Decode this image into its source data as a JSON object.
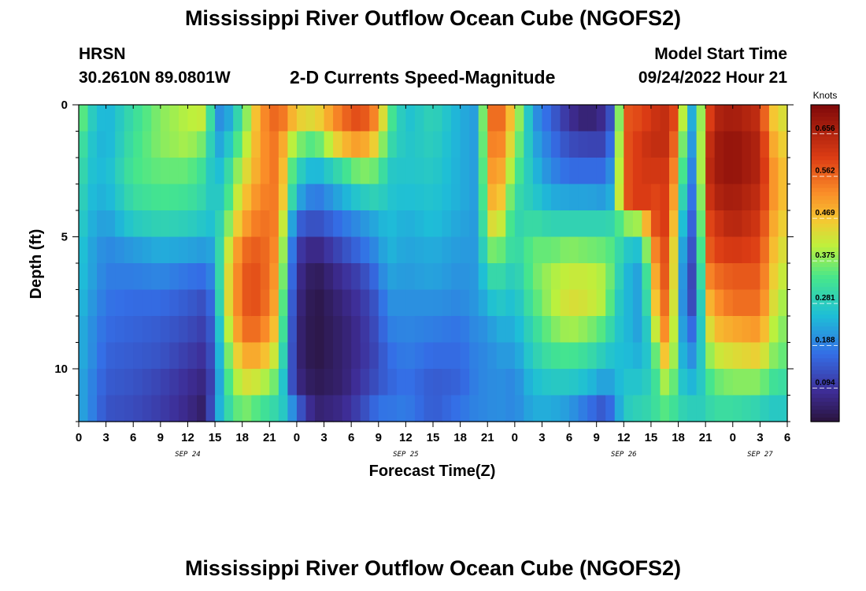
{
  "header": {
    "title": "Mississippi River Outflow Ocean Cube (NGOFS2)",
    "station": "HRSN",
    "coords": "30.2610N  89.0801W",
    "subtitle": "2-D Currents Speed-Magnitude",
    "model_label": "Model Start Time",
    "model_time": "09/24/2022 Hour 21"
  },
  "footer": {
    "title": "Mississippi River Outflow Ocean Cube (NGOFS2)"
  },
  "chart_data": {
    "type": "heatmap",
    "title": "2-D Currents Speed-Magnitude",
    "xlabel": "Forecast Time(Z)",
    "ylabel": "Depth (ft)",
    "x_range_hours": [
      0,
      78
    ],
    "y_range_ft": [
      0,
      12
    ],
    "x_tick_values": [
      0,
      3,
      6,
      9,
      12,
      15,
      18,
      21,
      24,
      27,
      30,
      33,
      36,
      39,
      42,
      45,
      48,
      51,
      54,
      57,
      60,
      63,
      66,
      69,
      72,
      75,
      78
    ],
    "x_tick_labels": [
      "0",
      "3",
      "6",
      "9",
      "12",
      "15",
      "18",
      "21",
      "0",
      "3",
      "6",
      "9",
      "12",
      "15",
      "18",
      "21",
      "0",
      "3",
      "6",
      "9",
      "12",
      "15",
      "18",
      "21",
      "0",
      "3",
      "6"
    ],
    "y_ticks": [
      0,
      5,
      10
    ],
    "y_tick_labels": [
      "0",
      "5",
      "10"
    ],
    "date_labels": [
      {
        "label": "SEP 24",
        "hour": 12
      },
      {
        "label": "SEP 25",
        "hour": 36
      },
      {
        "label": "SEP 26",
        "hour": 60
      },
      {
        "label": "SEP 27",
        "hour": 75
      }
    ],
    "colorbar": {
      "unit": "Knots",
      "min": 0.02,
      "max": 0.72,
      "ticks": [
        0.094,
        0.188,
        0.281,
        0.375,
        0.469,
        0.562,
        0.656
      ],
      "tick_labels": [
        "0.094",
        "0.188",
        "0.281",
        "0.375",
        "0.469",
        "0.562",
        "0.656"
      ]
    },
    "depth_levels_ft": [
      0.5,
      1.5,
      2.5,
      3.5,
      4.5,
      5.5,
      6.5,
      7.5,
      8.5,
      9.5,
      10.5,
      11.5
    ],
    "time_step_hours": 1,
    "speed_profiles_by_hour": [
      [
        0,
        [
          0.4,
          0.36,
          0.34,
          0.32,
          0.3,
          0.28,
          0.27,
          0.26,
          0.25,
          0.25,
          0.24,
          0.24
        ]
      ],
      [
        1,
        [
          0.3,
          0.28,
          0.27,
          0.26,
          0.25,
          0.24,
          0.24,
          0.23,
          0.22,
          0.22,
          0.21,
          0.21
        ]
      ],
      [
        3,
        [
          0.24,
          0.24,
          0.25,
          0.24,
          0.22,
          0.2,
          0.19,
          0.18,
          0.17,
          0.16,
          0.15,
          0.14
        ]
      ],
      [
        6,
        [
          0.32,
          0.33,
          0.34,
          0.32,
          0.28,
          0.22,
          0.19,
          0.17,
          0.16,
          0.15,
          0.14,
          0.13
        ]
      ],
      [
        9,
        [
          0.38,
          0.38,
          0.36,
          0.34,
          0.3,
          0.24,
          0.2,
          0.17,
          0.15,
          0.14,
          0.12,
          0.11
        ]
      ],
      [
        12,
        [
          0.41,
          0.4,
          0.36,
          0.33,
          0.29,
          0.23,
          0.18,
          0.15,
          0.13,
          0.11,
          0.09,
          0.08
        ]
      ],
      [
        14,
        [
          0.42,
          0.36,
          0.32,
          0.3,
          0.27,
          0.22,
          0.17,
          0.13,
          0.11,
          0.09,
          0.07,
          0.05
        ]
      ],
      [
        15,
        [
          0.22,
          0.23,
          0.24,
          0.26,
          0.26,
          0.24,
          0.22,
          0.2,
          0.18,
          0.17,
          0.16,
          0.2
        ]
      ],
      [
        16,
        [
          0.2,
          0.24,
          0.28,
          0.3,
          0.34,
          0.38,
          0.4,
          0.4,
          0.36,
          0.33,
          0.31,
          0.29
        ]
      ],
      [
        18,
        [
          0.34,
          0.38,
          0.42,
          0.46,
          0.5,
          0.56,
          0.58,
          0.58,
          0.56,
          0.5,
          0.44,
          0.38
        ]
      ],
      [
        20,
        [
          0.52,
          0.52,
          0.52,
          0.54,
          0.56,
          0.58,
          0.59,
          0.59,
          0.56,
          0.5,
          0.42,
          0.34
        ]
      ],
      [
        22,
        [
          0.58,
          0.56,
          0.56,
          0.55,
          0.54,
          0.52,
          0.5,
          0.48,
          0.45,
          0.4,
          0.35,
          0.3
        ]
      ],
      [
        23,
        [
          0.52,
          0.44,
          0.4,
          0.38,
          0.3,
          0.26,
          0.24,
          0.22,
          0.21,
          0.2,
          0.19,
          0.26
        ]
      ],
      [
        24,
        [
          0.46,
          0.38,
          0.3,
          0.24,
          0.16,
          0.11,
          0.09,
          0.08,
          0.07,
          0.07,
          0.08,
          0.16
        ]
      ],
      [
        26,
        [
          0.44,
          0.34,
          0.24,
          0.18,
          0.13,
          0.07,
          0.04,
          0.03,
          0.03,
          0.03,
          0.04,
          0.06
        ]
      ],
      [
        29,
        [
          0.56,
          0.48,
          0.32,
          0.24,
          0.18,
          0.13,
          0.09,
          0.07,
          0.06,
          0.06,
          0.06,
          0.08
        ]
      ],
      [
        31,
        [
          0.6,
          0.52,
          0.38,
          0.28,
          0.21,
          0.17,
          0.12,
          0.1,
          0.09,
          0.09,
          0.1,
          0.12
        ]
      ],
      [
        33,
        [
          0.52,
          0.44,
          0.36,
          0.3,
          0.24,
          0.21,
          0.18,
          0.15,
          0.14,
          0.13,
          0.14,
          0.18
        ]
      ],
      [
        34,
        [
          0.36,
          0.32,
          0.28,
          0.27,
          0.26,
          0.25,
          0.23,
          0.21,
          0.19,
          0.17,
          0.16,
          0.18
        ]
      ],
      [
        36,
        [
          0.26,
          0.27,
          0.27,
          0.26,
          0.24,
          0.23,
          0.22,
          0.21,
          0.2,
          0.19,
          0.18,
          0.19
        ]
      ],
      [
        39,
        [
          0.3,
          0.29,
          0.28,
          0.27,
          0.26,
          0.24,
          0.23,
          0.21,
          0.19,
          0.17,
          0.15,
          0.15
        ]
      ],
      [
        42,
        [
          0.24,
          0.24,
          0.24,
          0.24,
          0.23,
          0.22,
          0.21,
          0.2,
          0.18,
          0.17,
          0.16,
          0.18
        ]
      ],
      [
        44,
        [
          0.22,
          0.22,
          0.22,
          0.22,
          0.22,
          0.22,
          0.22,
          0.22,
          0.21,
          0.2,
          0.2,
          0.2
        ]
      ],
      [
        45,
        [
          0.52,
          0.5,
          0.48,
          0.46,
          0.42,
          0.36,
          0.3,
          0.25,
          0.21,
          0.2,
          0.2,
          0.2
        ]
      ],
      [
        46,
        [
          0.6,
          0.58,
          0.55,
          0.52,
          0.46,
          0.38,
          0.32,
          0.28,
          0.24,
          0.22,
          0.21,
          0.21
        ]
      ],
      [
        48,
        [
          0.44,
          0.4,
          0.36,
          0.32,
          0.3,
          0.3,
          0.28,
          0.26,
          0.24,
          0.22,
          0.2,
          0.2
        ]
      ],
      [
        50,
        [
          0.22,
          0.24,
          0.26,
          0.28,
          0.32,
          0.36,
          0.36,
          0.34,
          0.31,
          0.29,
          0.26,
          0.24
        ]
      ],
      [
        52,
        [
          0.16,
          0.18,
          0.2,
          0.24,
          0.3,
          0.36,
          0.4,
          0.4,
          0.37,
          0.33,
          0.28,
          0.24
        ]
      ],
      [
        54,
        [
          0.09,
          0.13,
          0.17,
          0.23,
          0.3,
          0.38,
          0.42,
          0.44,
          0.4,
          0.34,
          0.28,
          0.22
        ]
      ],
      [
        56,
        [
          0.06,
          0.12,
          0.17,
          0.23,
          0.3,
          0.37,
          0.42,
          0.43,
          0.38,
          0.32,
          0.26,
          0.18
        ]
      ],
      [
        58,
        [
          0.09,
          0.12,
          0.17,
          0.22,
          0.3,
          0.36,
          0.4,
          0.4,
          0.34,
          0.28,
          0.22,
          0.14
        ]
      ],
      [
        59,
        [
          0.18,
          0.22,
          0.24,
          0.26,
          0.31,
          0.34,
          0.33,
          0.3,
          0.28,
          0.26,
          0.24,
          0.2
        ]
      ],
      [
        60,
        [
          0.58,
          0.58,
          0.58,
          0.58,
          0.38,
          0.28,
          0.26,
          0.26,
          0.26,
          0.26,
          0.27,
          0.28
        ]
      ],
      [
        62,
        [
          0.6,
          0.62,
          0.62,
          0.62,
          0.4,
          0.26,
          0.22,
          0.22,
          0.22,
          0.24,
          0.27,
          0.3
        ]
      ],
      [
        63,
        [
          0.62,
          0.64,
          0.62,
          0.6,
          0.58,
          0.5,
          0.44,
          0.4,
          0.34,
          0.3,
          0.3,
          0.31
        ]
      ],
      [
        64,
        [
          0.64,
          0.64,
          0.62,
          0.6,
          0.6,
          0.58,
          0.56,
          0.54,
          0.5,
          0.42,
          0.36,
          0.34
        ]
      ],
      [
        65,
        [
          0.64,
          0.64,
          0.62,
          0.62,
          0.62,
          0.6,
          0.6,
          0.58,
          0.56,
          0.52,
          0.44,
          0.36
        ]
      ],
      [
        66,
        [
          0.56,
          0.5,
          0.46,
          0.4,
          0.34,
          0.3,
          0.29,
          0.28,
          0.27,
          0.27,
          0.28,
          0.3
        ]
      ],
      [
        67,
        [
          0.26,
          0.24,
          0.22,
          0.2,
          0.18,
          0.16,
          0.14,
          0.14,
          0.18,
          0.22,
          0.26,
          0.3
        ]
      ],
      [
        68,
        [
          0.22,
          0.2,
          0.18,
          0.16,
          0.14,
          0.12,
          0.11,
          0.12,
          0.16,
          0.2,
          0.24,
          0.28
        ]
      ],
      [
        69,
        [
          0.56,
          0.6,
          0.62,
          0.6,
          0.58,
          0.56,
          0.52,
          0.46,
          0.4,
          0.36,
          0.32,
          0.3
        ]
      ],
      [
        70,
        [
          0.66,
          0.68,
          0.68,
          0.66,
          0.62,
          0.6,
          0.56,
          0.52,
          0.48,
          0.42,
          0.36,
          0.32
        ]
      ],
      [
        72,
        [
          0.68,
          0.7,
          0.7,
          0.68,
          0.66,
          0.62,
          0.58,
          0.56,
          0.5,
          0.44,
          0.38,
          0.32
        ]
      ],
      [
        75,
        [
          0.64,
          0.66,
          0.66,
          0.64,
          0.62,
          0.6,
          0.58,
          0.56,
          0.52,
          0.46,
          0.38,
          0.3
        ]
      ],
      [
        76,
        [
          0.5,
          0.54,
          0.56,
          0.56,
          0.54,
          0.52,
          0.5,
          0.48,
          0.44,
          0.4,
          0.34,
          0.28
        ]
      ],
      [
        77,
        [
          0.44,
          0.46,
          0.48,
          0.48,
          0.46,
          0.44,
          0.42,
          0.4,
          0.38,
          0.36,
          0.32,
          0.28
        ]
      ]
    ]
  }
}
